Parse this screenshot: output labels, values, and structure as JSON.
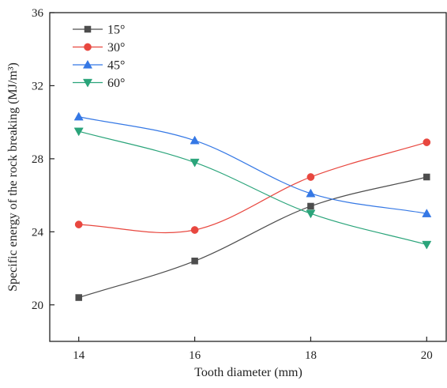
{
  "chart_data": {
    "type": "line",
    "title": "",
    "xlabel": "Tooth diameter (mm)",
    "ylabel": "Specific energy of the rock breaking (MJ/m³)",
    "x": [
      14,
      16,
      18,
      20
    ],
    "x_ticks": [
      "14",
      "16",
      "18",
      "20"
    ],
    "y_ticks": [
      "20",
      "24",
      "28",
      "32",
      "36"
    ],
    "xlim": [
      13.5,
      20.35
    ],
    "ylim": [
      18,
      36
    ],
    "grid": false,
    "legend_position": "top-left",
    "smooth": true,
    "series": [
      {
        "name": "15°",
        "marker": "square",
        "color": "#4d4d4d",
        "values": [
          20.4,
          22.4,
          25.4,
          27.0
        ]
      },
      {
        "name": "30°",
        "marker": "circle",
        "color": "#e8473f",
        "values": [
          24.4,
          24.1,
          27.0,
          28.9
        ]
      },
      {
        "name": "45°",
        "marker": "triangle-up",
        "color": "#3578e5",
        "values": [
          30.3,
          29.0,
          26.1,
          25.0
        ]
      },
      {
        "name": "60°",
        "marker": "triangle-down",
        "color": "#2aa47a",
        "values": [
          29.5,
          27.8,
          25.0,
          23.3
        ]
      }
    ]
  }
}
